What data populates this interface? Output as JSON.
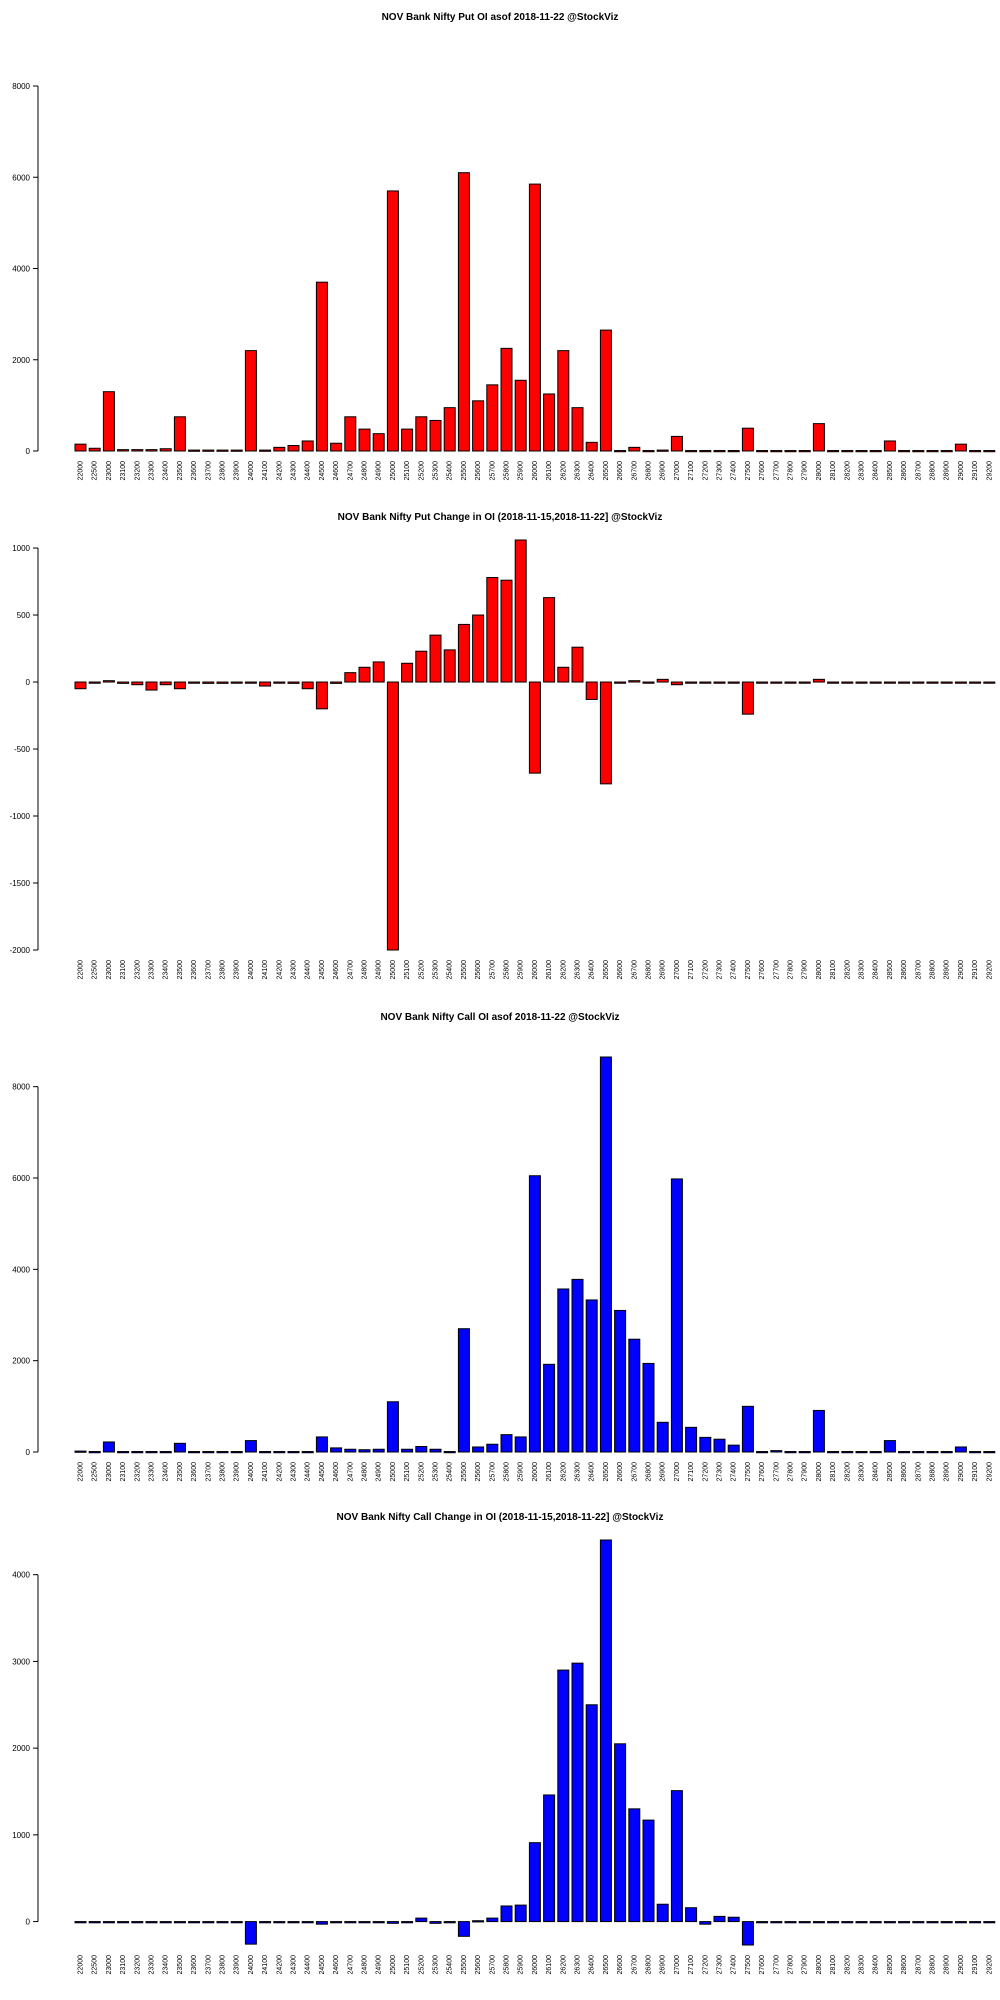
{
  "chart_data": [
    {
      "type": "bar",
      "title": "NOV Bank Nifty Put OI asof 2018-11-22 @StockViz",
      "color": "#ff0000",
      "categories": [
        "22000",
        "22500",
        "23000",
        "23100",
        "23200",
        "23300",
        "23400",
        "23500",
        "23600",
        "23700",
        "23800",
        "23900",
        "24000",
        "24100",
        "24200",
        "24300",
        "24400",
        "24500",
        "24600",
        "24700",
        "24800",
        "24900",
        "25000",
        "25100",
        "25200",
        "25300",
        "25400",
        "25500",
        "25600",
        "25700",
        "25800",
        "25900",
        "26000",
        "26100",
        "26200",
        "26300",
        "26400",
        "26500",
        "26600",
        "26700",
        "26800",
        "26900",
        "27000",
        "27100",
        "27200",
        "27300",
        "27400",
        "27500",
        "27600",
        "27700",
        "27800",
        "27900",
        "28000",
        "28100",
        "28200",
        "28300",
        "28400",
        "28500",
        "28600",
        "28700",
        "28800",
        "28900",
        "29000",
        "29100",
        "29200"
      ],
      "values": [
        150,
        60,
        1300,
        30,
        30,
        30,
        50,
        750,
        20,
        20,
        20,
        20,
        2200,
        20,
        80,
        120,
        220,
        3700,
        170,
        750,
        480,
        380,
        5700,
        480,
        750,
        670,
        950,
        6100,
        1100,
        1450,
        2250,
        1550,
        5850,
        1250,
        2200,
        950,
        190,
        2650,
        10,
        80,
        10,
        20,
        320,
        10,
        10,
        10,
        10,
        500,
        10,
        10,
        10,
        10,
        600,
        10,
        10,
        10,
        10,
        220,
        10,
        10,
        10,
        10,
        150,
        10,
        10
      ],
      "yticks": [
        0,
        2000,
        4000,
        6000,
        8000
      ],
      "ylim": [
        0,
        8000
      ]
    },
    {
      "type": "bar",
      "title": "NOV Bank Nifty Put Change in OI (2018-11-15,2018-11-22] @StockViz",
      "color": "#ff0000",
      "categories": [
        "22000",
        "22500",
        "23000",
        "23100",
        "23200",
        "23300",
        "23400",
        "23500",
        "23600",
        "23700",
        "23800",
        "23900",
        "24000",
        "24100",
        "24200",
        "24300",
        "24400",
        "24500",
        "24600",
        "24700",
        "24800",
        "24900",
        "25000",
        "25100",
        "25200",
        "25300",
        "25400",
        "25500",
        "25600",
        "25700",
        "25800",
        "25900",
        "26000",
        "26100",
        "26200",
        "26300",
        "26400",
        "26500",
        "26600",
        "26700",
        "26800",
        "26900",
        "27000",
        "27100",
        "27200",
        "27300",
        "27400",
        "27500",
        "27600",
        "27700",
        "27800",
        "27900",
        "28000",
        "28100",
        "28200",
        "28300",
        "28400",
        "28500",
        "28600",
        "28700",
        "28800",
        "28900",
        "29000",
        "29100",
        "29200"
      ],
      "values": [
        -50,
        0,
        10,
        -10,
        -20,
        -60,
        -20,
        -50,
        -5,
        -10,
        -10,
        0,
        0,
        -30,
        0,
        -10,
        -50,
        -200,
        -10,
        70,
        110,
        150,
        -2000,
        140,
        230,
        350,
        240,
        430,
        500,
        780,
        760,
        1060,
        -680,
        630,
        110,
        260,
        -130,
        -760,
        0,
        10,
        0,
        20,
        -20,
        0,
        0,
        0,
        0,
        -240,
        0,
        0,
        0,
        0,
        20,
        0,
        0,
        0,
        0,
        0,
        0,
        0,
        0,
        0,
        0,
        0,
        0
      ],
      "yticks": [
        -2000,
        -1500,
        -1000,
        -500,
        0,
        500,
        1000
      ],
      "ylim": [
        -2000,
        1060
      ]
    },
    {
      "type": "bar",
      "title": "NOV Bank Nifty Call OI asof 2018-11-22 @StockViz",
      "color": "#0000ff",
      "categories": [
        "22000",
        "22500",
        "23000",
        "23100",
        "23200",
        "23300",
        "23400",
        "23500",
        "23600",
        "23700",
        "23800",
        "23900",
        "24000",
        "24100",
        "24200",
        "24300",
        "24400",
        "24500",
        "24600",
        "24700",
        "24800",
        "24900",
        "25000",
        "25100",
        "25200",
        "25300",
        "25400",
        "25500",
        "25600",
        "25700",
        "25800",
        "25900",
        "26000",
        "26100",
        "26200",
        "26300",
        "26400",
        "26500",
        "26600",
        "26700",
        "26800",
        "26900",
        "27000",
        "27100",
        "27200",
        "27300",
        "27400",
        "27500",
        "27600",
        "27700",
        "27800",
        "27900",
        "28000",
        "28100",
        "28200",
        "28300",
        "28400",
        "28500",
        "28600",
        "28700",
        "28800",
        "28900",
        "29000",
        "29100",
        "29200"
      ],
      "values": [
        20,
        10,
        220,
        10,
        10,
        10,
        10,
        190,
        10,
        10,
        10,
        10,
        250,
        10,
        10,
        10,
        10,
        330,
        90,
        60,
        50,
        60,
        1100,
        60,
        120,
        60,
        10,
        2700,
        110,
        170,
        380,
        330,
        6050,
        1920,
        3570,
        3780,
        3330,
        8650,
        3100,
        2470,
        1940,
        650,
        5980,
        540,
        320,
        280,
        150,
        1000,
        10,
        30,
        10,
        10,
        910,
        10,
        10,
        10,
        10,
        250,
        10,
        10,
        10,
        10,
        110,
        10,
        10
      ],
      "yticks": [
        0,
        2000,
        4000,
        6000,
        8000
      ],
      "ylim": [
        0,
        8650
      ]
    },
    {
      "type": "bar",
      "title": "NOV Bank Nifty Call Change in OI (2018-11-15,2018-11-22] @StockViz",
      "color": "#0000ff",
      "categories": [
        "22000",
        "22500",
        "23000",
        "23100",
        "23200",
        "23300",
        "23400",
        "23500",
        "23600",
        "23700",
        "23800",
        "23900",
        "24000",
        "24100",
        "24200",
        "24300",
        "24400",
        "24500",
        "24600",
        "24700",
        "24800",
        "24900",
        "25000",
        "25100",
        "25200",
        "25300",
        "25400",
        "25500",
        "25600",
        "25700",
        "25800",
        "25900",
        "26000",
        "26100",
        "26200",
        "26300",
        "26400",
        "26500",
        "26600",
        "26700",
        "26800",
        "26900",
        "27000",
        "27100",
        "27200",
        "27300",
        "27400",
        "27500",
        "27600",
        "27700",
        "27800",
        "27900",
        "28000",
        "28100",
        "28200",
        "28300",
        "28400",
        "28500",
        "28600",
        "28700",
        "28800",
        "28900",
        "29000",
        "29100",
        "29200"
      ],
      "values": [
        0,
        0,
        0,
        0,
        0,
        0,
        0,
        0,
        0,
        0,
        0,
        0,
        -260,
        0,
        0,
        0,
        0,
        -30,
        0,
        0,
        -10,
        0,
        -20,
        0,
        40,
        -20,
        0,
        -170,
        10,
        40,
        180,
        190,
        910,
        1460,
        2900,
        2980,
        2500,
        4400,
        2050,
        1300,
        1170,
        200,
        1510,
        160,
        -30,
        60,
        50,
        -270,
        0,
        -10,
        0,
        0,
        0,
        0,
        0,
        0,
        0,
        0,
        0,
        0,
        0,
        0,
        0,
        0,
        0
      ],
      "yticks": [
        0,
        1000,
        2000,
        3000,
        4000
      ],
      "ylim": [
        -270,
        4400
      ]
    }
  ]
}
